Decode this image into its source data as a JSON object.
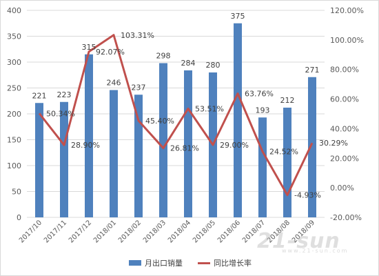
{
  "chart_data": {
    "type": "bar",
    "categories": [
      "2017/10",
      "2017/11",
      "2017/12",
      "2018/01",
      "2018/02",
      "2018/03",
      "2018/04",
      "2018/05",
      "2018/06",
      "2018/07",
      "2018/08",
      "2018/09"
    ],
    "series": [
      {
        "name": "月出口销量",
        "type": "bar",
        "axis": "left",
        "color": "#4f81bd",
        "values": [
          221,
          223,
          315,
          246,
          237,
          298,
          284,
          280,
          375,
          193,
          212,
          271
        ],
        "labels": [
          "221",
          "223",
          "315",
          "246",
          "237",
          "298",
          "284",
          "280",
          "375",
          "193",
          "212",
          "271"
        ]
      },
      {
        "name": "同比增长率",
        "type": "line",
        "axis": "right",
        "color": "#c0504d",
        "values": [
          50.34,
          28.9,
          92.07,
          103.31,
          45.4,
          26.81,
          53.51,
          29.0,
          63.76,
          24.52,
          -4.93,
          30.29
        ],
        "labels": [
          "50.34%",
          "28.90%",
          "92.07%",
          "103.31%",
          "45.40%",
          "26.81%",
          "53.51%",
          "29.00%",
          "63.76%",
          "24.52%",
          "-4.93%",
          "30.29%"
        ]
      }
    ],
    "left_axis": {
      "ylim": [
        0,
        400
      ],
      "ticks": [
        0,
        50,
        100,
        150,
        200,
        250,
        300,
        350,
        400
      ],
      "tick_labels": [
        "0",
        "50",
        "100",
        "150",
        "200",
        "250",
        "300",
        "350",
        "400"
      ]
    },
    "right_axis": {
      "ylim": [
        -20,
        120
      ],
      "ticks": [
        -20,
        0,
        20,
        40,
        60,
        80,
        100,
        120
      ],
      "tick_labels": [
        "-20.00%",
        "0.00%",
        "20.00%",
        "40.00%",
        "60.00%",
        "80.00%",
        "100.00%",
        "120.00%"
      ]
    },
    "xtick_labels": [
      "2017/10",
      "2017/11",
      "2017/12",
      "2018/01",
      "2018/02",
      "2018/03",
      "2018/04",
      "2018/05",
      "2018/06",
      "2018/07",
      "2018/08",
      "2018/09"
    ],
    "grid": true,
    "legend_position": "bottom"
  },
  "watermark": {
    "text": "21-sun",
    "sub": "www.21-sun.com"
  }
}
